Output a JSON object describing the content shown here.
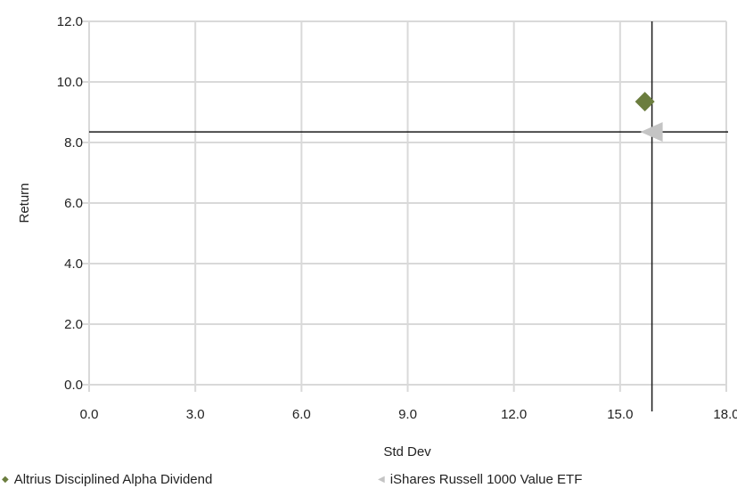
{
  "chart_data": {
    "type": "scatter",
    "title": "",
    "xlabel": "Std Dev",
    "ylabel": "Return",
    "xlim": [
      0,
      18
    ],
    "ylim": [
      0,
      12
    ],
    "x_ticks": [
      "0.0",
      "3.0",
      "6.0",
      "9.0",
      "12.0",
      "15.0",
      "18.0"
    ],
    "y_ticks": [
      "0.0",
      "2.0",
      "4.0",
      "6.0",
      "8.0",
      "10.0",
      "12.0"
    ],
    "grid": true,
    "legend_position": "bottom",
    "reference_lines": {
      "x": 15.9,
      "y": 8.35
    },
    "series": [
      {
        "name": "Altrius Disciplined Alpha Dividend",
        "x": 15.7,
        "y": 9.35,
        "marker": "diamond",
        "color": "#6b7d3e"
      },
      {
        "name": "iShares Russell 1000 Value ETF",
        "x": 15.9,
        "y": 8.35,
        "marker": "triangle-left",
        "color": "#c4c4c4"
      }
    ]
  }
}
